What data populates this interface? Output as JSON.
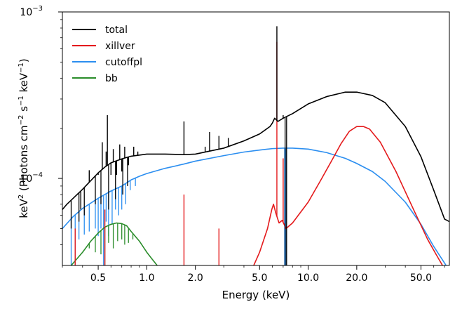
{
  "chart_data": {
    "type": "line",
    "xscale": "log",
    "yscale": "log",
    "xlim": [
      0.3,
      75
    ],
    "ylim": [
      3e-05,
      0.001
    ],
    "xlabel": "Energy (keV)",
    "ylabel_parts": [
      "keV",
      "2",
      " (Photons cm",
      "−2",
      " s",
      "−1",
      " keV",
      "−1",
      ")"
    ],
    "x_ticks": [
      {
        "value": 0.5,
        "label": "0.5"
      },
      {
        "value": 1.0,
        "label": "1.0"
      },
      {
        "value": 2.0,
        "label": "2.0"
      },
      {
        "value": 5.0,
        "label": "5.0"
      },
      {
        "value": 10.0,
        "label": "10.0"
      },
      {
        "value": 20.0,
        "label": "20.0"
      },
      {
        "value": 50.0,
        "label": "50.0"
      }
    ],
    "y_ticks": [
      {
        "value": 0.0001,
        "base": "10",
        "exp": "−4"
      },
      {
        "value": 0.001,
        "base": "10",
        "exp": "−3"
      }
    ],
    "legend": {
      "placement": "top-left"
    },
    "series": [
      {
        "name": "total",
        "color": "#000000",
        "continuum": [
          [
            0.3,
            6.5e-05
          ],
          [
            0.32,
            7e-05
          ],
          [
            0.35,
            7.6e-05
          ],
          [
            0.4,
            8.6e-05
          ],
          [
            0.45,
            9.7e-05
          ],
          [
            0.5,
            0.000108
          ],
          [
            0.55,
            0.000117
          ],
          [
            0.6,
            0.000124
          ],
          [
            0.7,
            0.000131
          ],
          [
            0.8,
            0.000136
          ],
          [
            1.0,
            0.00014
          ],
          [
            1.3,
            0.00014
          ],
          [
            1.7,
            0.000139
          ],
          [
            2.0,
            0.00014
          ],
          [
            3.0,
            0.000152
          ],
          [
            4.0,
            0.000168
          ],
          [
            5.0,
            0.000185
          ],
          [
            5.8,
            0.000205
          ],
          [
            6.0,
            0.000215
          ],
          [
            6.2,
            0.00023
          ],
          [
            6.5,
            0.00022
          ],
          [
            7.0,
            0.00023
          ],
          [
            8.0,
            0.000245
          ],
          [
            10.0,
            0.00028
          ],
          [
            13.0,
            0.00031
          ],
          [
            17.0,
            0.00033
          ],
          [
            20.0,
            0.00033
          ],
          [
            25.0,
            0.000315
          ],
          [
            30.0,
            0.000285
          ],
          [
            40.0,
            0.000205
          ],
          [
            50.0,
            0.000135
          ],
          [
            60.0,
            8.5e-05
          ],
          [
            70.0,
            5.7e-05
          ],
          [
            75.0,
            5.5e-05
          ]
        ],
        "lines": [
          [
            0.39,
            6.5e-05
          ],
          [
            0.42,
            9e-05
          ],
          [
            0.44,
            0.000112
          ],
          [
            0.5,
            0.000105
          ],
          [
            0.53,
            0.000165
          ],
          [
            0.56,
            0.000145
          ],
          [
            0.57,
            0.00024
          ],
          [
            0.6,
            0.000105
          ],
          [
            0.62,
            0.00015
          ],
          [
            0.65,
            0.000105
          ],
          [
            0.68,
            0.00016
          ],
          [
            0.7,
            0.00011
          ],
          [
            0.73,
            0.000155
          ],
          [
            0.77,
            0.00012
          ],
          [
            0.83,
            0.000155
          ],
          [
            0.88,
            0.000145
          ],
          [
            1.7,
            0.00022
          ],
          [
            2.3,
            0.000155
          ],
          [
            2.45,
            0.00019
          ],
          [
            2.8,
            0.00018
          ],
          [
            3.2,
            0.000175
          ],
          [
            6.4,
            0.00082
          ],
          [
            7.0,
            0.00024
          ]
        ],
        "absorption": [
          [
            0.34,
            5e-05
          ],
          [
            0.38,
            5.5e-05
          ],
          [
            0.41,
            6e-05
          ],
          [
            0.48,
            7e-05
          ],
          [
            0.52,
            7e-05
          ],
          [
            0.58,
            6.5e-05
          ],
          [
            0.64,
            7.5e-05
          ],
          [
            0.71,
            8e-05
          ],
          [
            0.76,
            9e-05
          ],
          [
            7.2,
            3e-05
          ],
          [
            7.35,
            3e-05
          ]
        ]
      },
      {
        "name": "xillver",
        "color": "#e41a1c",
        "continuum": [
          [
            4.6,
            3e-05
          ],
          [
            5.0,
            3.6e-05
          ],
          [
            5.6,
            5e-05
          ],
          [
            5.95,
            6.5e-05
          ],
          [
            6.1,
            7e-05
          ],
          [
            6.3,
            6.2e-05
          ],
          [
            6.6,
            5.4e-05
          ],
          [
            6.9,
            5.6e-05
          ],
          [
            7.3,
            5e-05
          ],
          [
            8.0,
            5.4e-05
          ],
          [
            10.0,
            7.2e-05
          ],
          [
            12.0,
            9.8e-05
          ],
          [
            14.0,
            0.000128
          ],
          [
            16.0,
            0.000162
          ],
          [
            18.0,
            0.000192
          ],
          [
            20.0,
            0.000205
          ],
          [
            22.0,
            0.000205
          ],
          [
            24.0,
            0.000198
          ],
          [
            28.0,
            0.000165
          ],
          [
            35.0,
            0.00011
          ],
          [
            45.0,
            6.5e-05
          ],
          [
            55.0,
            4.3e-05
          ],
          [
            62.0,
            3.5e-05
          ],
          [
            68.0,
            3e-05
          ]
        ],
        "lines": [
          [
            0.36,
            5e-05
          ],
          [
            0.55,
            6.5e-05
          ],
          [
            1.7,
            8e-05
          ],
          [
            2.8,
            5e-05
          ],
          [
            6.4,
            0.00066
          ],
          [
            7.0,
            0.000132
          ]
        ]
      },
      {
        "name": "cutoffpl",
        "color": "#2b8ef0",
        "continuum": [
          [
            0.3,
            5e-05
          ],
          [
            0.35,
            5.9e-05
          ],
          [
            0.4,
            6.6e-05
          ],
          [
            0.5,
            7.6e-05
          ],
          [
            0.6,
            8.4e-05
          ],
          [
            0.7,
            9e-05
          ],
          [
            0.8,
            9.8e-05
          ],
          [
            0.9,
            0.000103
          ],
          [
            1.0,
            0.000107
          ],
          [
            1.3,
            0.000115
          ],
          [
            1.7,
            0.000122
          ],
          [
            2.0,
            0.000127
          ],
          [
            3.0,
            0.000137
          ],
          [
            4.0,
            0.000144
          ],
          [
            5.0,
            0.000148
          ],
          [
            6.0,
            0.000151
          ],
          [
            7.0,
            0.000152
          ],
          [
            8.0,
            0.000152
          ],
          [
            10.0,
            0.00015
          ],
          [
            13.0,
            0.000143
          ],
          [
            17.0,
            0.000132
          ],
          [
            20.0,
            0.000123
          ],
          [
            25.0,
            0.00011
          ],
          [
            30.0,
            9.6e-05
          ],
          [
            40.0,
            7.2e-05
          ],
          [
            50.0,
            5.3e-05
          ],
          [
            60.0,
            3.9e-05
          ],
          [
            70.0,
            3.1e-05
          ],
          [
            75.0,
            2.8e-05
          ]
        ],
        "absorption": [
          [
            0.34,
            3e-05
          ],
          [
            0.36,
            3e-05
          ],
          [
            0.38,
            4.3e-05
          ],
          [
            0.41,
            4.6e-05
          ],
          [
            0.44,
            4.8e-05
          ],
          [
            0.48,
            5e-05
          ],
          [
            0.5,
            4.5e-05
          ],
          [
            0.52,
            5e-05
          ],
          [
            0.54,
            3e-05
          ],
          [
            0.56,
            5.5e-05
          ],
          [
            0.58,
            4.5e-05
          ],
          [
            0.61,
            5.3e-05
          ],
          [
            0.64,
            6.5e-05
          ],
          [
            0.67,
            6e-05
          ],
          [
            0.7,
            6.5e-05
          ],
          [
            0.74,
            7e-05
          ],
          [
            0.79,
            8.5e-05
          ],
          [
            0.85,
            9e-05
          ],
          [
            7.15,
            3e-05
          ],
          [
            7.25,
            3e-05
          ],
          [
            7.35,
            3e-05
          ]
        ]
      },
      {
        "name": "bb",
        "color": "#2a8c2a",
        "continuum": [
          [
            0.34,
            3e-05
          ],
          [
            0.4,
            3.6e-05
          ],
          [
            0.45,
            4.2e-05
          ],
          [
            0.5,
            4.7e-05
          ],
          [
            0.55,
            5.1e-05
          ],
          [
            0.6,
            5.3e-05
          ],
          [
            0.65,
            5.4e-05
          ],
          [
            0.7,
            5.35e-05
          ],
          [
            0.75,
            5.2e-05
          ],
          [
            0.8,
            4.8e-05
          ],
          [
            0.9,
            4.2e-05
          ],
          [
            1.0,
            3.6e-05
          ],
          [
            1.1,
            3.2e-05
          ],
          [
            1.16,
            3e-05
          ]
        ],
        "absorption": [
          [
            0.44,
            3.8e-05
          ],
          [
            0.48,
            3.6e-05
          ],
          [
            0.52,
            3.5e-05
          ],
          [
            0.55,
            3e-05
          ],
          [
            0.58,
            4.1e-05
          ],
          [
            0.62,
            3.8e-05
          ],
          [
            0.66,
            4.2e-05
          ],
          [
            0.7,
            4.3e-05
          ],
          [
            0.73,
            4e-05
          ],
          [
            0.77,
            4.1e-05
          ],
          [
            0.82,
            4.3e-05
          ]
        ]
      }
    ]
  }
}
